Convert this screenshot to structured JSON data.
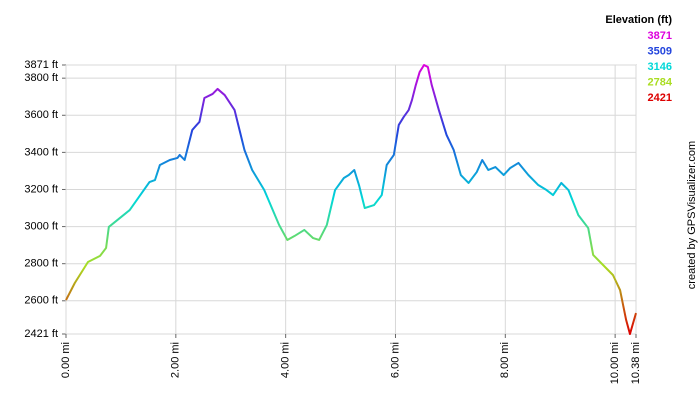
{
  "chart_data": {
    "type": "line",
    "legend_title": "Elevation (ft)",
    "credit": "created by GPSVisualizer.com",
    "x": [
      0,
      0.16,
      0.4,
      0.62,
      0.73,
      0.78,
      1.16,
      1.52,
      1.62,
      1.71,
      1.89,
      2.03,
      2.07,
      2.16,
      2.3,
      2.38,
      2.43,
      2.52,
      2.67,
      2.76,
      2.89,
      3.07,
      3.25,
      3.39,
      3.61,
      3.88,
      4.03,
      4.16,
      4.34,
      4.5,
      4.61,
      4.75,
      4.9,
      5.06,
      5.15,
      5.25,
      5.34,
      5.44,
      5.61,
      5.75,
      5.84,
      5.97,
      6.06,
      6.15,
      6.24,
      6.3,
      6.37,
      6.44,
      6.52,
      6.59,
      6.66,
      6.79,
      6.93,
      7.06,
      7.19,
      7.33,
      7.48,
      7.58,
      7.69,
      7.82,
      7.97,
      8.09,
      8.24,
      8.42,
      8.6,
      8.75,
      8.87,
      9.02,
      9.15,
      9.33,
      9.51,
      9.6,
      9.78,
      9.96,
      10.09,
      10.2,
      10.27,
      10.38
    ],
    "series": [
      {
        "values": [
          2604,
          2696,
          2809,
          2842,
          2885,
          2998,
          3089,
          3240,
          3251,
          3332,
          3359,
          3370,
          3386,
          3359,
          3521,
          3548,
          3564,
          3693,
          3715,
          3742,
          3709,
          3628,
          3413,
          3305,
          3197,
          3009,
          2928,
          2949,
          2982,
          2938,
          2928,
          3009,
          3197,
          3262,
          3278,
          3305,
          3219,
          3100,
          3116,
          3170,
          3332,
          3386,
          3548,
          3591,
          3628,
          3682,
          3763,
          3833,
          3871,
          3860,
          3763,
          3628,
          3494,
          3413,
          3278,
          3235,
          3294,
          3359,
          3305,
          3321,
          3278,
          3316,
          3343,
          3278,
          3224,
          3197,
          3170,
          3235,
          3197,
          3062,
          2992,
          2847,
          2793,
          2739,
          2658,
          2497,
          2421,
          2534
        ]
      }
    ],
    "color_scale": [
      {
        "value": 3871,
        "color": "#dd00dd"
      },
      {
        "value": 3509,
        "color": "#2244dd"
      },
      {
        "value": 3146,
        "color": "#00d8d8"
      },
      {
        "value": 2784,
        "color": "#aadd22"
      },
      {
        "value": 2421,
        "color": "#dd0000"
      }
    ],
    "xlim": [
      0,
      10.38
    ],
    "ylim": [
      2421,
      3871
    ],
    "xticks": [
      {
        "value": 0,
        "label": "0.00 mi"
      },
      {
        "value": 2,
        "label": "2.00 mi"
      },
      {
        "value": 4,
        "label": "4.00 mi"
      },
      {
        "value": 6,
        "label": "6.00 mi"
      },
      {
        "value": 8,
        "label": "8.00 mi"
      },
      {
        "value": 10,
        "label": "10.00 mi"
      },
      {
        "value": 10.38,
        "label": "10.38 mi"
      }
    ],
    "yticks": [
      {
        "value": 2421,
        "label": "2421 ft"
      },
      {
        "value": 2600,
        "label": "2600 ft"
      },
      {
        "value": 2800,
        "label": "2800 ft"
      },
      {
        "value": 3000,
        "label": "3000 ft"
      },
      {
        "value": 3200,
        "label": "3200 ft"
      },
      {
        "value": 3400,
        "label": "3400 ft"
      },
      {
        "value": 3600,
        "label": "3600 ft"
      },
      {
        "value": 3800,
        "label": "3800 ft"
      },
      {
        "value": 3871,
        "label": "3871 ft"
      }
    ],
    "grid": true
  }
}
